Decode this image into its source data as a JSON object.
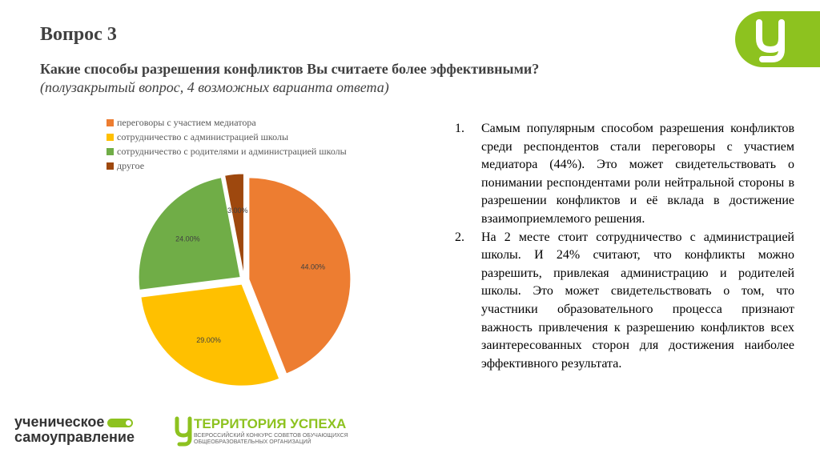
{
  "slide": {
    "title": "Вопрос 3",
    "question": "Какие способы разрешения конфликтов Вы считаете более эффективными?",
    "note": "(полузакрытый вопрос, 4 возможных варианта ответа)"
  },
  "chart_data": {
    "type": "pie",
    "categories": [
      "переговоры с участием медиатора",
      "сотрудничество с администрацией школы",
      "сотрудничество с родителями и администрацией школы",
      "другое"
    ],
    "values": [
      44,
      29,
      24,
      3
    ],
    "labels": [
      "44.00%",
      "29.00%",
      "24.00%",
      "3.00%"
    ],
    "colors": [
      "#ed7d31",
      "#ffc000",
      "#70ad47",
      "#9e480e"
    ],
    "legend_position": "top-left"
  },
  "text_points": [
    {
      "num": "1.",
      "text": "Самым популярным способом разрешения конфликтов среди респондентов стали переговоры с участием медиатора (44%). Это может свидетельствовать о понимании респондентами роли нейтральной стороны в разрешении конфликтов и её вклада в достижение взаимоприемлемого решения."
    },
    {
      "num": "2.",
      "text": "На 2 месте стоит сотрудничество с администрацией школы. И 24% считают, что конфликты можно разрешить, привлекая администрацию и родителей школы. Это может свидетельствовать о том, что участники образовательного процесса признают важность привлечения к разрешению конфликтов всех заинтересованных сторон для достижения наиболее эффективного результата."
    }
  ],
  "branding": {
    "logo1_line1": "ученическое",
    "logo1_line2": "самоуправление",
    "logo2_title": "ТЕРРИТОРИЯ УСПЕХА",
    "logo2_sub1": "ВСЕРОССИЙСКИЙ КОНКУРС СОВЕТОВ ОБУЧАЮЩИХСЯ",
    "logo2_sub2": "ОБЩЕОБРАЗОВАТЕЛЬНЫХ ОРГАНИЗАЦИЙ",
    "accent_color": "#8dc21f"
  }
}
